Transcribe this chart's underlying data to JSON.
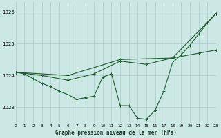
{
  "title": "Graphe pression niveau de la mer (hPa)",
  "bg_color": "#cce8e4",
  "grid_color": "#aaccca",
  "line_color": "#1a5c2a",
  "xmin": 0,
  "xmax": 23,
  "ymin": 1022.5,
  "ymax": 1026.3,
  "yticks": [
    1023,
    1024,
    1025,
    1026
  ],
  "xticks": [
    0,
    1,
    2,
    3,
    4,
    5,
    6,
    7,
    8,
    9,
    10,
    11,
    12,
    13,
    14,
    15,
    16,
    17,
    18,
    19,
    20,
    21,
    22,
    23
  ],
  "series1": {
    "x": [
      0,
      1,
      2,
      3,
      4,
      5,
      6,
      7,
      8,
      9,
      10,
      11,
      12,
      13,
      14,
      15,
      16,
      17,
      18,
      19,
      20,
      21,
      22,
      23
    ],
    "y": [
      1024.1,
      1024.05,
      1023.9,
      1023.75,
      1023.65,
      1023.5,
      1023.4,
      1023.25,
      1023.3,
      1023.35,
      1023.95,
      1024.05,
      1023.05,
      1023.05,
      1022.65,
      1022.62,
      1022.9,
      1023.5,
      1024.4,
      1024.65,
      1024.95,
      1025.3,
      1025.65,
      1025.95
    ]
  },
  "series2": {
    "comment": "every 3h: 0,3,6,9,12,15,18,21,23",
    "x": [
      0,
      3,
      6,
      9,
      12,
      15,
      18,
      21,
      23
    ],
    "y": [
      1024.1,
      1024.0,
      1023.85,
      1024.05,
      1024.45,
      1024.35,
      1024.55,
      1024.7,
      1024.8
    ]
  },
  "series3": {
    "x": [
      0,
      6,
      12,
      18,
      23
    ],
    "y": [
      1024.1,
      1024.0,
      1024.5,
      1024.55,
      1025.95
    ]
  }
}
